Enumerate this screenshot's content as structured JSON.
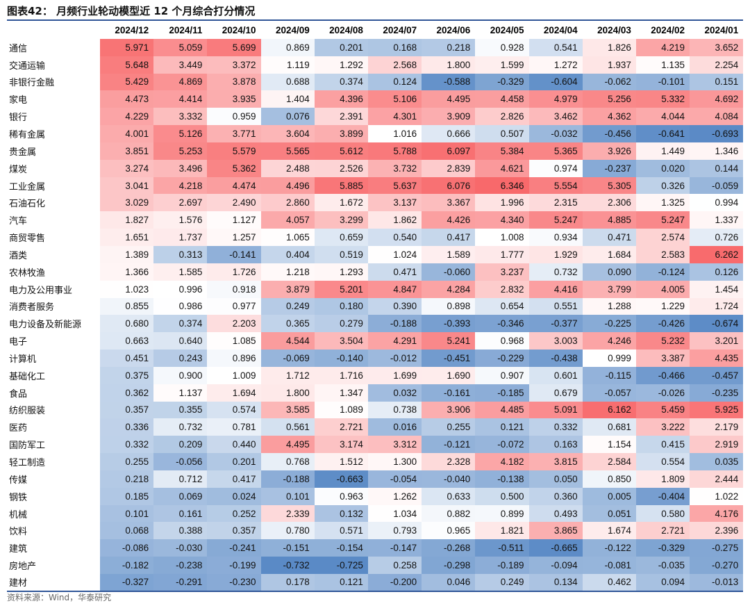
{
  "title": "图表42：  月频行业轮动模型近 12 个月综合打分情况",
  "source": "资料来源：Wind，华泰研究",
  "colors": {
    "high": "#f8696b",
    "mid": "#ffffff",
    "low": "#5a8ac6",
    "rule": "#2f5597"
  },
  "chart_data": {
    "type": "heatmap",
    "color_scale": {
      "min": -0.7,
      "max": 6.35,
      "midpoint": 1.0
    },
    "columns": [
      "2024/12",
      "2024/11",
      "2024/10",
      "2024/09",
      "2024/08",
      "2024/07",
      "2024/06",
      "2024/05",
      "2024/04",
      "2024/03",
      "2024/02",
      "2024/01"
    ],
    "rows": [
      {
        "label": "通信",
        "values": [
          5.971,
          5.059,
          5.699,
          0.869,
          0.201,
          0.168,
          0.218,
          0.928,
          0.541,
          1.826,
          4.219,
          3.652
        ]
      },
      {
        "label": "交通运输",
        "values": [
          5.648,
          3.449,
          3.372,
          1.119,
          1.292,
          2.568,
          1.8,
          1.599,
          1.272,
          1.937,
          1.135,
          2.254
        ]
      },
      {
        "label": "非银行金融",
        "values": [
          5.429,
          4.869,
          3.878,
          0.688,
          0.374,
          0.124,
          -0.588,
          -0.329,
          -0.604,
          -0.062,
          -0.101,
          0.151
        ]
      },
      {
        "label": "家电",
        "values": [
          4.473,
          4.414,
          3.935,
          1.404,
          4.396,
          5.106,
          4.495,
          4.458,
          4.979,
          5.256,
          5.332,
          4.692
        ]
      },
      {
        "label": "银行",
        "values": [
          4.229,
          3.332,
          0.959,
          0.076,
          2.391,
          4.301,
          3.909,
          2.826,
          3.462,
          4.362,
          4.044,
          4.084
        ]
      },
      {
        "label": "稀有金属",
        "values": [
          4.001,
          5.126,
          3.771,
          3.604,
          3.899,
          1.016,
          0.666,
          0.507,
          -0.032,
          -0.456,
          -0.641,
          -0.693
        ]
      },
      {
        "label": "贵金属",
        "values": [
          3.851,
          5.253,
          5.579,
          5.565,
          5.612,
          5.788,
          6.097,
          5.384,
          5.365,
          3.926,
          1.449,
          1.346
        ]
      },
      {
        "label": "煤炭",
        "values": [
          3.274,
          3.496,
          5.362,
          2.488,
          2.526,
          3.732,
          2.839,
          4.621,
          0.974,
          -0.237,
          0.02,
          0.144
        ]
      },
      {
        "label": "工业金属",
        "values": [
          3.041,
          4.218,
          4.474,
          4.496,
          5.885,
          5.637,
          6.076,
          6.346,
          5.554,
          5.305,
          0.326,
          -0.059
        ]
      },
      {
        "label": "石油石化",
        "values": [
          3.029,
          2.697,
          2.49,
          2.86,
          1.672,
          3.137,
          3.367,
          1.996,
          2.315,
          2.306,
          1.325,
          0.994
        ]
      },
      {
        "label": "汽车",
        "values": [
          1.827,
          1.576,
          1.127,
          4.057,
          3.299,
          1.862,
          4.426,
          4.34,
          5.247,
          4.885,
          5.247,
          1.337
        ]
      },
      {
        "label": "商贸零售",
        "values": [
          1.651,
          1.737,
          1.257,
          1.065,
          0.659,
          0.54,
          0.417,
          1.008,
          0.934,
          0.471,
          2.574,
          0.726
        ]
      },
      {
        "label": "酒类",
        "values": [
          1.389,
          0.313,
          -0.141,
          0.404,
          0.519,
          1.024,
          1.589,
          1.777,
          1.929,
          1.684,
          2.583,
          6.262
        ]
      },
      {
        "label": "农林牧渔",
        "values": [
          1.366,
          1.585,
          1.726,
          1.218,
          1.293,
          0.471,
          -0.06,
          3.237,
          0.732,
          0.09,
          -0.124,
          0.126
        ]
      },
      {
        "label": "电力及公用事业",
        "values": [
          1.023,
          0.996,
          0.918,
          3.879,
          5.201,
          4.847,
          4.284,
          2.832,
          4.416,
          3.799,
          4.005,
          1.454
        ]
      },
      {
        "label": "消费者服务",
        "values": [
          0.855,
          0.986,
          0.977,
          0.249,
          0.18,
          0.39,
          0.898,
          0.654,
          0.551,
          1.288,
          1.229,
          1.724
        ]
      },
      {
        "label": "电力设备及新能源",
        "values": [
          0.68,
          0.374,
          2.203,
          0.365,
          0.279,
          -0.188,
          -0.393,
          -0.346,
          -0.377,
          -0.225,
          -0.426,
          -0.674
        ]
      },
      {
        "label": "电子",
        "values": [
          0.663,
          0.64,
          1.085,
          4.544,
          3.504,
          4.291,
          5.241,
          0.968,
          3.003,
          4.246,
          5.232,
          3.201
        ]
      },
      {
        "label": "计算机",
        "values": [
          0.451,
          0.243,
          0.896,
          -0.069,
          -0.14,
          -0.012,
          -0.451,
          -0.229,
          -0.438,
          0.999,
          3.387,
          4.435
        ]
      },
      {
        "label": "基础化工",
        "values": [
          0.375,
          0.9,
          1.009,
          1.712,
          1.716,
          1.699,
          1.69,
          0.907,
          0.601,
          -0.115,
          -0.466,
          -0.457
        ]
      },
      {
        "label": "食品",
        "values": [
          0.362,
          1.137,
          1.694,
          1.8,
          1.347,
          0.032,
          -0.161,
          -0.185,
          0.679,
          -0.057,
          -0.026,
          -0.235
        ]
      },
      {
        "label": "纺织服装",
        "values": [
          0.357,
          0.355,
          0.574,
          3.585,
          1.089,
          0.738,
          3.906,
          4.485,
          5.091,
          6.162,
          5.459,
          5.925
        ]
      },
      {
        "label": "医药",
        "values": [
          0.336,
          0.732,
          0.781,
          0.561,
          2.721,
          0.016,
          0.255,
          0.121,
          0.332,
          0.681,
          3.222,
          2.179
        ]
      },
      {
        "label": "国防军工",
        "values": [
          0.332,
          0.209,
          0.44,
          4.495,
          3.174,
          3.312,
          -0.121,
          -0.072,
          0.163,
          1.154,
          0.415,
          2.919
        ]
      },
      {
        "label": "轻工制造",
        "values": [
          0.255,
          -0.056,
          0.201,
          0.768,
          1.512,
          1.3,
          2.328,
          4.182,
          3.815,
          2.584,
          0.554,
          0.035
        ]
      },
      {
        "label": "传媒",
        "values": [
          0.218,
          0.712,
          0.417,
          -0.188,
          -0.663,
          -0.054,
          -0.04,
          -0.138,
          0.05,
          0.85,
          1.809,
          2.444
        ]
      },
      {
        "label": "钢铁",
        "values": [
          0.185,
          0.069,
          0.024,
          0.101,
          0.963,
          1.262,
          0.633,
          0.5,
          0.36,
          0.005,
          -0.404,
          1.022
        ]
      },
      {
        "label": "机械",
        "values": [
          0.101,
          0.161,
          0.252,
          2.339,
          0.132,
          1.034,
          0.882,
          0.899,
          0.493,
          0.051,
          0.58,
          4.176
        ]
      },
      {
        "label": "饮料",
        "values": [
          0.068,
          0.388,
          0.357,
          0.78,
          0.571,
          0.793,
          0.965,
          1.821,
          3.865,
          1.674,
          2.721,
          2.396
        ]
      },
      {
        "label": "建筑",
        "values": [
          -0.086,
          -0.03,
          -0.241,
          -0.151,
          -0.154,
          -0.147,
          -0.268,
          -0.511,
          -0.665,
          -0.122,
          -0.329,
          -0.275
        ]
      },
      {
        "label": "房地产",
        "values": [
          -0.182,
          -0.238,
          -0.199,
          -0.732,
          -0.725,
          0.258,
          -0.298,
          -0.189,
          -0.094,
          -0.081,
          -0.035,
          -0.27
        ]
      },
      {
        "label": "建材",
        "values": [
          -0.327,
          -0.291,
          -0.23,
          0.178,
          0.121,
          -0.2,
          0.046,
          0.249,
          0.134,
          0.462,
          0.094,
          -0.013
        ]
      }
    ]
  }
}
